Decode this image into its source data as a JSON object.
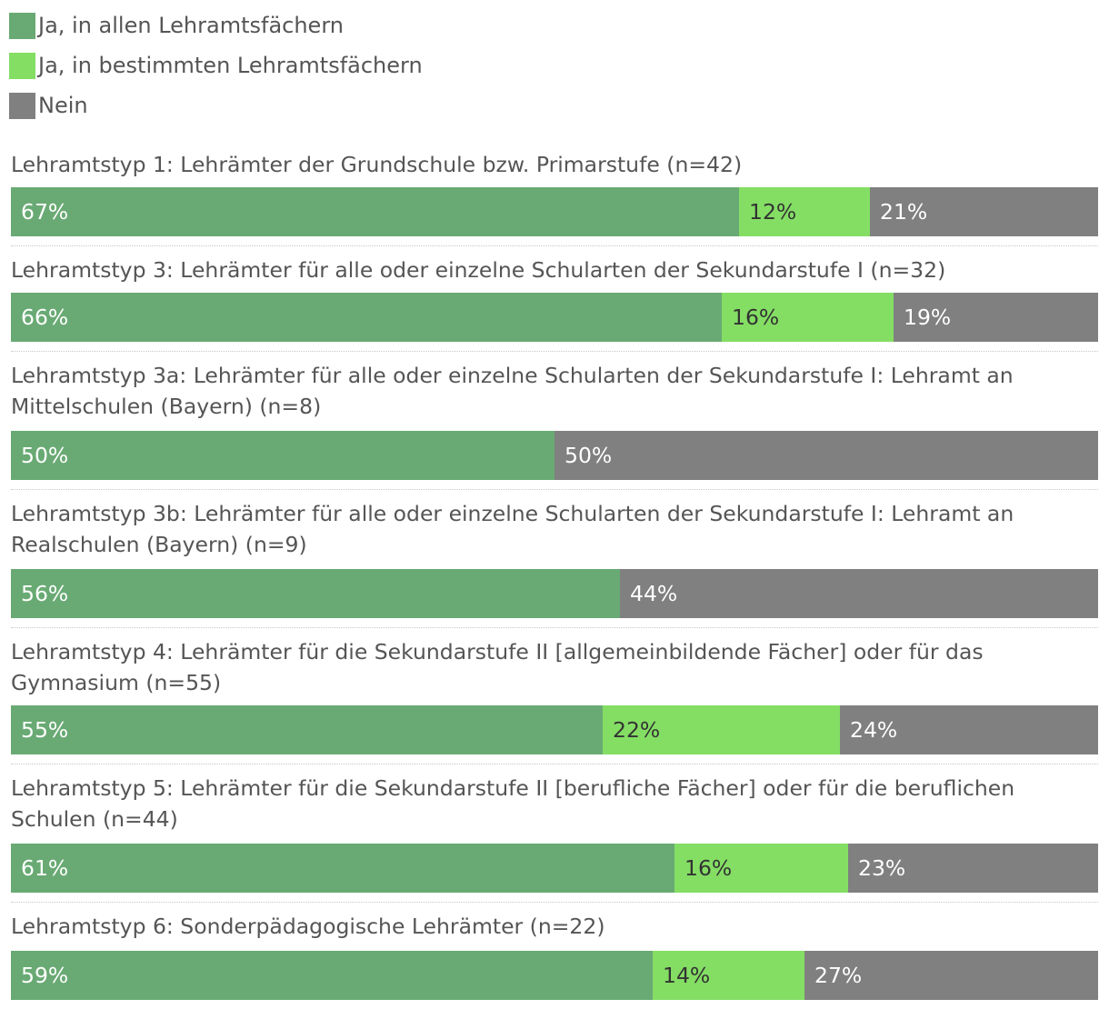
{
  "colors": {
    "all": "#69aa74",
    "some": "#84de64",
    "none": "#808080",
    "text_light": "#ffffff",
    "text_dark": "#333333"
  },
  "chart_data": {
    "type": "bar",
    "orientation": "horizontal",
    "stacked": true,
    "normalized_percent": true,
    "xlim": [
      0,
      100
    ],
    "legend": {
      "placement": "top-left",
      "entries": [
        {
          "key": "all",
          "label": "Ja, in allen Lehramtsfächern"
        },
        {
          "key": "some",
          "label": "Ja, in bestimmten Lehramtsfächern"
        },
        {
          "key": "none",
          "label": "Nein"
        }
      ]
    },
    "categories": [
      "Lehramtstyp 1: Lehrämter der Grundschule bzw. Primarstufe (n=42)",
      "Lehramtstyp 3: Lehrämter für alle oder einzelne Schularten der Sekundarstufe I (n=32)",
      "Lehramtstyp 3a: Lehrämter für alle oder einzelne Schularten der Sekundarstufe I: Lehramt an Mittelschulen (Bayern) (n=8)",
      "Lehramtstyp 3b: Lehrämter für alle oder einzelne Schularten der Sekundarstufe I: Lehramt an Realschulen (Bayern) (n=9)",
      "Lehramtstyp 4: Lehrämter für die Sekundarstufe II [allgemeinbildende Fächer] oder für das Gymnasium (n=55)",
      "Lehramtstyp 5: Lehrämter für die Sekundarstufe II [berufliche Fächer] oder für die beruflichen Schulen (n=44)",
      "Lehramtstyp 6: Sonderpädagogische Lehrämter (n=22)"
    ],
    "series": [
      {
        "key": "all",
        "name": "Ja, in allen Lehramtsfächern",
        "values": [
          67,
          66,
          50,
          56,
          55,
          61,
          59
        ],
        "labels": [
          "67%",
          "66%",
          "50%",
          "56%",
          "55%",
          "61%",
          "59%"
        ]
      },
      {
        "key": "some",
        "name": "Ja, in bestimmten Lehramtsfächern",
        "values": [
          12,
          16,
          0,
          0,
          22,
          16,
          14
        ],
        "labels": [
          "12%",
          "16%",
          "",
          "",
          "22%",
          "16%",
          "14%"
        ]
      },
      {
        "key": "none",
        "name": "Nein",
        "values": [
          21,
          19,
          50,
          44,
          24,
          23,
          27
        ],
        "labels": [
          "21%",
          "19%",
          "50%",
          "44%",
          "24%",
          "23%",
          "27%"
        ]
      }
    ]
  }
}
